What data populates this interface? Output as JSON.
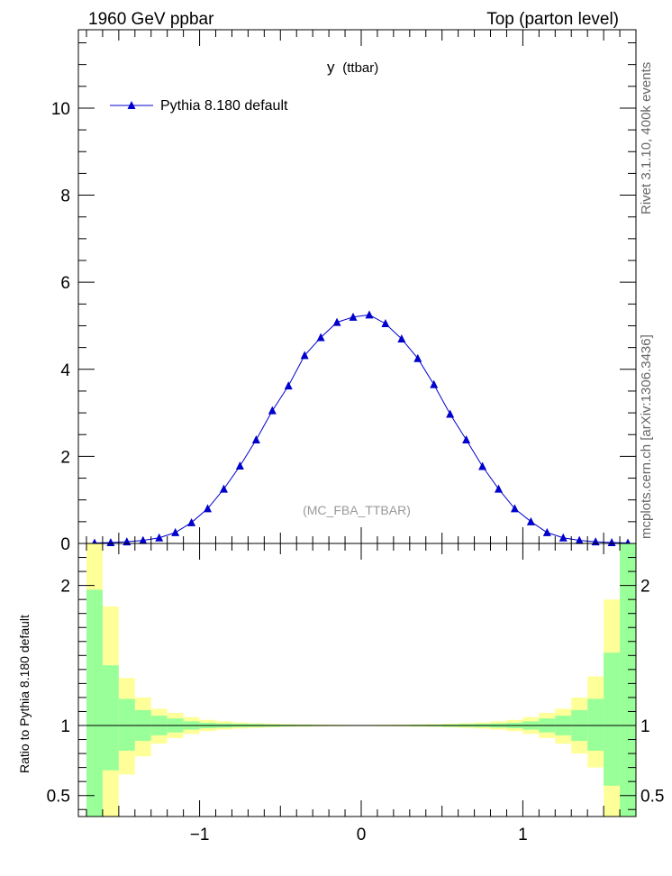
{
  "header": {
    "left_title": "1960 GeV ppbar",
    "right_title": "Top (parton level)"
  },
  "side_labels": {
    "rivet": "Rivet 3.1.10,  400k events",
    "mcplots": "mcplots.cern.ch [arXiv:1306.3436]"
  },
  "colors": {
    "series": "#0000cc",
    "band_inner": "#99ff99",
    "band_outer": "#ffff99"
  },
  "chart_data": [
    {
      "type": "line",
      "title": "y (ttbar)",
      "plot_title": "y",
      "plot_title_suffix": "(ttbar)",
      "watermark": "(MC_FBA_TTBAR)",
      "xlim": [
        -1.75,
        1.7
      ],
      "ylim": [
        0,
        11.8
      ],
      "yticks": [
        0,
        2,
        4,
        6,
        8,
        10
      ],
      "ytick_labels": [
        "0",
        "2",
        "4",
        "6",
        "8",
        "10"
      ],
      "legend": "top-left",
      "series": [
        {
          "name": "Pythia 8.180 default",
          "marker": "triangle",
          "x": [
            -1.65,
            -1.55,
            -1.45,
            -1.35,
            -1.25,
            -1.15,
            -1.05,
            -0.95,
            -0.85,
            -0.75,
            -0.65,
            -0.55,
            -0.45,
            -0.35,
            -0.25,
            -0.15,
            -0.05,
            0.05,
            0.15,
            0.25,
            0.35,
            0.45,
            0.55,
            0.65,
            0.75,
            0.85,
            0.95,
            1.05,
            1.15,
            1.25,
            1.35,
            1.45,
            1.55,
            1.65
          ],
          "y": [
            0.01,
            0.02,
            0.04,
            0.07,
            0.13,
            0.25,
            0.48,
            0.8,
            1.25,
            1.78,
            2.38,
            3.05,
            3.62,
            4.32,
            4.73,
            5.08,
            5.2,
            5.25,
            5.05,
            4.7,
            4.25,
            3.65,
            2.97,
            2.38,
            1.77,
            1.25,
            0.8,
            0.5,
            0.25,
            0.13,
            0.07,
            0.04,
            0.02,
            0.01
          ]
        }
      ]
    },
    {
      "type": "area",
      "ylabel": "Ratio to Pythia 8.180 default",
      "xlim": [
        -1.75,
        1.7
      ],
      "ylim": [
        0.35,
        2.3
      ],
      "yticks": [
        0.5,
        1,
        2
      ],
      "ytick_labels": [
        "0.5",
        "1",
        "2"
      ],
      "xticks": [
        -1,
        0,
        1
      ],
      "xtick_labels": [
        "−1",
        "0",
        "1"
      ],
      "bin_edges": [
        -1.7,
        -1.6,
        -1.5,
        -1.4,
        -1.3,
        -1.2,
        -1.1,
        -1.0,
        -0.9,
        -0.8,
        -0.7,
        -0.6,
        -0.5,
        -0.4,
        -0.3,
        -0.2,
        -0.1,
        0.0,
        0.1,
        0.2,
        0.3,
        0.4,
        0.5,
        0.6,
        0.7,
        0.8,
        0.9,
        1.0,
        1.1,
        1.2,
        1.3,
        1.4,
        1.5,
        1.6
      ],
      "inner_band": [
        [
          0.35,
          1.97
        ],
        [
          0.68,
          1.43
        ],
        [
          0.82,
          1.19
        ],
        [
          0.89,
          1.11
        ],
        [
          0.93,
          1.07
        ],
        [
          0.95,
          1.05
        ],
        [
          0.97,
          1.03
        ],
        [
          0.98,
          1.02
        ],
        [
          0.985,
          1.015
        ],
        [
          0.988,
          1.012
        ],
        [
          0.99,
          1.01
        ],
        [
          0.992,
          1.008
        ],
        [
          0.994,
          1.006
        ],
        [
          0.995,
          1.005
        ],
        [
          0.996,
          1.004
        ],
        [
          0.997,
          1.003
        ],
        [
          0.997,
          1.003
        ],
        [
          0.997,
          1.003
        ],
        [
          0.997,
          1.003
        ],
        [
          0.996,
          1.004
        ],
        [
          0.995,
          1.005
        ],
        [
          0.994,
          1.006
        ],
        [
          0.992,
          1.008
        ],
        [
          0.99,
          1.01
        ],
        [
          0.988,
          1.012
        ],
        [
          0.985,
          1.015
        ],
        [
          0.98,
          1.02
        ],
        [
          0.97,
          1.03
        ],
        [
          0.95,
          1.05
        ],
        [
          0.93,
          1.07
        ],
        [
          0.89,
          1.11
        ],
        [
          0.82,
          1.19
        ],
        [
          0.57,
          1.52
        ],
        [
          0.35,
          2.3
        ]
      ],
      "outer_band": [
        [
          0.35,
          2.3
        ],
        [
          0.35,
          1.85
        ],
        [
          0.65,
          1.34
        ],
        [
          0.78,
          1.2
        ],
        [
          0.87,
          1.12
        ],
        [
          0.91,
          1.09
        ],
        [
          0.94,
          1.06
        ],
        [
          0.96,
          1.04
        ],
        [
          0.97,
          1.03
        ],
        [
          0.978,
          1.022
        ],
        [
          0.983,
          1.017
        ],
        [
          0.987,
          1.013
        ],
        [
          0.99,
          1.01
        ],
        [
          0.992,
          1.008
        ],
        [
          0.994,
          1.006
        ],
        [
          0.995,
          1.005
        ],
        [
          0.996,
          1.004
        ],
        [
          0.996,
          1.004
        ],
        [
          0.995,
          1.005
        ],
        [
          0.994,
          1.006
        ],
        [
          0.992,
          1.008
        ],
        [
          0.99,
          1.01
        ],
        [
          0.987,
          1.013
        ],
        [
          0.983,
          1.017
        ],
        [
          0.978,
          1.022
        ],
        [
          0.97,
          1.03
        ],
        [
          0.96,
          1.04
        ],
        [
          0.94,
          1.06
        ],
        [
          0.91,
          1.09
        ],
        [
          0.87,
          1.12
        ],
        [
          0.8,
          1.2
        ],
        [
          0.7,
          1.35
        ],
        [
          0.35,
          1.9
        ],
        [
          0.35,
          2.3
        ]
      ]
    }
  ]
}
